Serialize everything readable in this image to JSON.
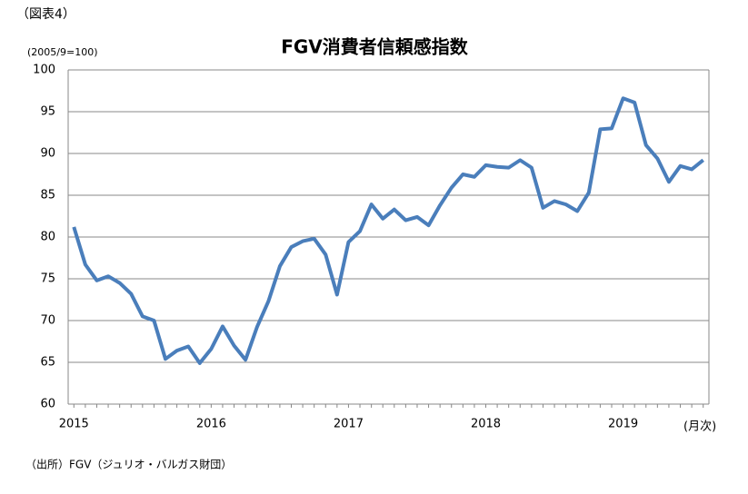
{
  "chart_data": {
    "type": "line",
    "figure_label": "（図表4）",
    "title": "FGV消費者信頼感指数",
    "y_axis_label": "(2005/9=100)",
    "x_axis_label": "(月次)",
    "source": "（出所）FGV（ジュリオ・バルガス財団）",
    "categories": [
      "2015",
      null,
      null,
      null,
      null,
      null,
      null,
      null,
      null,
      null,
      null,
      null,
      "2016",
      null,
      null,
      null,
      null,
      null,
      null,
      null,
      null,
      null,
      null,
      null,
      "2017",
      null,
      null,
      null,
      null,
      null,
      null,
      null,
      null,
      null,
      null,
      null,
      "2018",
      null,
      null,
      null,
      null,
      null,
      null,
      null,
      null,
      null,
      null,
      null,
      "2019",
      null,
      null,
      null,
      null,
      null,
      null,
      null
    ],
    "series": [
      {
        "name": "FGV消費者信頼感指数",
        "color": "#4a7ebb",
        "values": [
          81.2,
          76.7,
          74.8,
          75.3,
          74.5,
          73.2,
          70.5,
          70.0,
          65.4,
          66.4,
          66.9,
          64.9,
          66.6,
          69.3,
          67.0,
          65.3,
          69.2,
          72.3,
          76.5,
          78.8,
          79.5,
          79.8,
          77.9,
          73.1,
          79.4,
          80.7,
          83.9,
          82.2,
          83.3,
          82.0,
          82.4,
          81.4,
          83.8,
          85.9,
          87.5,
          87.2,
          88.6,
          88.4,
          88.3,
          89.2,
          88.3,
          83.5,
          84.3,
          83.9,
          83.1,
          85.3,
          92.9,
          93.0,
          96.6,
          96.1,
          91.0,
          89.4,
          86.6,
          88.5,
          88.1,
          89.2
        ]
      }
    ],
    "ylim": [
      60,
      100
    ],
    "yticks": [
      60,
      65,
      70,
      75,
      80,
      85,
      90,
      95,
      100
    ],
    "grid": true
  }
}
